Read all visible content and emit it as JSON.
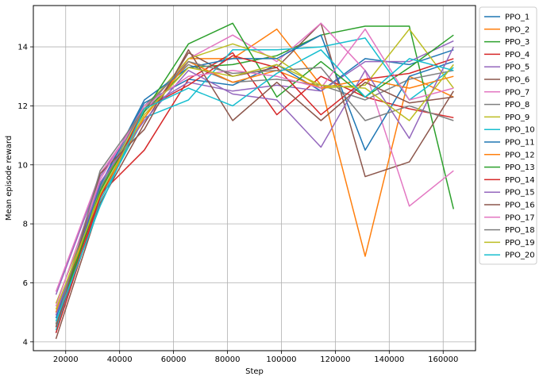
{
  "chart_data": {
    "type": "line",
    "title": "",
    "xlabel": "Step",
    "ylabel": "Mean episode reward",
    "xlim": [
      8000,
      172000
    ],
    "ylim": [
      3.7,
      15.4
    ],
    "x_ticks": [
      20000,
      40000,
      60000,
      80000,
      100000,
      120000,
      140000,
      160000
    ],
    "x_tick_labels": [
      "20000",
      "40000",
      "60000",
      "80000",
      "100000",
      "120000",
      "140000",
      "160000"
    ],
    "y_ticks": [
      4,
      6,
      8,
      10,
      12,
      14
    ],
    "y_tick_labels": [
      "4",
      "6",
      "8",
      "10",
      "12",
      "14"
    ],
    "grid": true,
    "legend_position": "outside-right",
    "x": [
      16384,
      32768,
      49152,
      65536,
      81920,
      98304,
      114688,
      131072,
      147456,
      163840
    ],
    "series": [
      {
        "name": "PPO_1",
        "color": "#1f77b4",
        "values": [
          4.3,
          9.3,
          12.1,
          12.9,
          12.7,
          13.4,
          12.5,
          13.6,
          13.4,
          13.9
        ]
      },
      {
        "name": "PPO_2",
        "color": "#ff7f0e",
        "values": [
          4.9,
          8.9,
          11.6,
          13.6,
          13.6,
          14.6,
          12.7,
          6.9,
          13.0,
          12.3
        ]
      },
      {
        "name": "PPO_3",
        "color": "#2ca02c",
        "values": [
          4.6,
          9.2,
          11.8,
          13.3,
          13.4,
          13.7,
          14.4,
          14.7,
          14.7,
          8.5
        ]
      },
      {
        "name": "PPO_4",
        "color": "#d62728",
        "values": [
          4.5,
          9.0,
          10.5,
          12.9,
          13.8,
          11.7,
          13.0,
          12.3,
          11.9,
          11.6
        ]
      },
      {
        "name": "PPO_5",
        "color": "#9467bd",
        "values": [
          5.6,
          9.6,
          11.9,
          12.8,
          12.5,
          12.7,
          12.5,
          13.5,
          13.5,
          14.2
        ]
      },
      {
        "name": "PPO_6",
        "color": "#8c564b",
        "values": [
          4.1,
          8.7,
          11.4,
          13.8,
          13.0,
          13.3,
          14.8,
          9.6,
          10.1,
          12.5
        ]
      },
      {
        "name": "PPO_7",
        "color": "#e377c2",
        "values": [
          5.7,
          9.7,
          11.8,
          13.6,
          14.4,
          13.5,
          14.8,
          13.2,
          8.6,
          9.8
        ]
      },
      {
        "name": "PPO_8",
        "color": "#7f7f7f",
        "values": [
          5.0,
          9.2,
          12.0,
          13.4,
          12.8,
          12.9,
          12.7,
          12.2,
          12.9,
          13.2
        ]
      },
      {
        "name": "PPO_9",
        "color": "#bcbd22",
        "values": [
          5.3,
          9.1,
          11.9,
          13.6,
          14.1,
          13.6,
          12.6,
          12.7,
          14.6,
          12.6
        ]
      },
      {
        "name": "PPO_10",
        "color": "#17becf",
        "values": [
          4.4,
          8.8,
          11.6,
          12.2,
          13.9,
          13.9,
          14.0,
          14.3,
          12.2,
          13.3
        ]
      },
      {
        "name": "PPO_11",
        "color": "#1f77b4",
        "values": [
          4.8,
          9.3,
          12.2,
          13.3,
          13.6,
          13.6,
          14.4,
          10.5,
          13.0,
          13.5
        ]
      },
      {
        "name": "PPO_12",
        "color": "#ff7f0e",
        "values": [
          5.0,
          9.0,
          11.6,
          13.5,
          12.8,
          13.2,
          12.6,
          12.9,
          12.6,
          13.0
        ]
      },
      {
        "name": "PPO_13",
        "color": "#2ca02c",
        "values": [
          4.6,
          9.1,
          11.8,
          14.1,
          14.8,
          12.3,
          13.5,
          12.3,
          13.3,
          14.4
        ]
      },
      {
        "name": "PPO_14",
        "color": "#d62728",
        "values": [
          4.3,
          8.9,
          11.9,
          12.7,
          13.7,
          13.3,
          11.7,
          12.9,
          13.1,
          13.6
        ]
      },
      {
        "name": "PPO_15",
        "color": "#9467bd",
        "values": [
          4.9,
          9.4,
          11.5,
          13.2,
          12.4,
          12.2,
          10.6,
          13.2,
          10.9,
          14.0
        ]
      },
      {
        "name": "PPO_16",
        "color": "#8c564b",
        "values": [
          4.5,
          9.7,
          11.2,
          13.9,
          11.5,
          12.8,
          11.5,
          12.8,
          12.1,
          12.3
        ]
      },
      {
        "name": "PPO_17",
        "color": "#e377c2",
        "values": [
          5.2,
          9.5,
          12.0,
          13.0,
          13.2,
          13.0,
          12.6,
          14.6,
          12.2,
          12.6
        ]
      },
      {
        "name": "PPO_18",
        "color": "#7f7f7f",
        "values": [
          4.6,
          9.8,
          11.9,
          13.5,
          13.1,
          13.2,
          13.3,
          11.5,
          12.0,
          11.5
        ]
      },
      {
        "name": "PPO_19",
        "color": "#bcbd22",
        "values": [
          5.1,
          9.0,
          11.7,
          13.3,
          13.0,
          13.4,
          12.7,
          12.6,
          11.5,
          13.4
        ]
      },
      {
        "name": "PPO_20",
        "color": "#17becf",
        "values": [
          4.7,
          8.6,
          11.9,
          12.6,
          12.0,
          13.1,
          13.9,
          12.3,
          13.6,
          13.2
        ]
      }
    ]
  }
}
